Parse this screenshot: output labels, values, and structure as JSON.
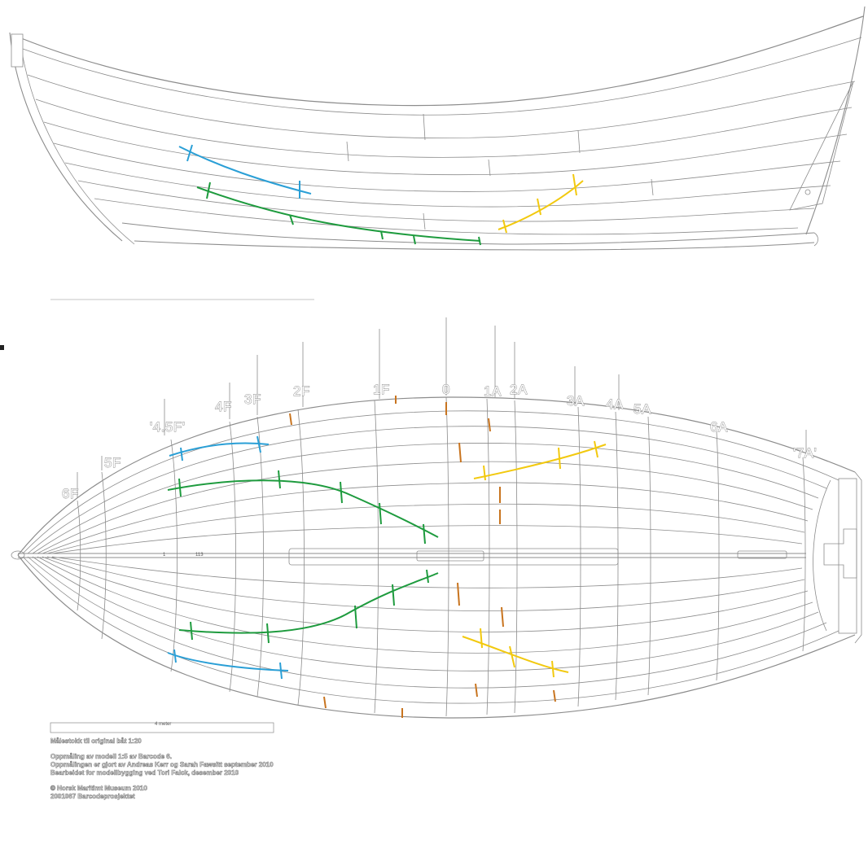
{
  "stations": [
    {
      "id": "6F",
      "label": "6F"
    },
    {
      "id": "5F",
      "label": "5F"
    },
    {
      "id": "4-5F",
      "label": "'4.5F'"
    },
    {
      "id": "4F",
      "label": "4F"
    },
    {
      "id": "3F",
      "label": "3F"
    },
    {
      "id": "2F",
      "label": "2F"
    },
    {
      "id": "1F",
      "label": "1F"
    },
    {
      "id": "0",
      "label": "0"
    },
    {
      "id": "1A",
      "label": "1A"
    },
    {
      "id": "2A",
      "label": "2A"
    },
    {
      "id": "3A",
      "label": "3A"
    },
    {
      "id": "4A",
      "label": "4A"
    },
    {
      "id": "5A",
      "label": "5A"
    },
    {
      "id": "6A",
      "label": "6A"
    },
    {
      "id": "7A",
      "label": "'7A'"
    }
  ],
  "keel_labels": {
    "a": "1",
    "b": "113"
  },
  "scale_bar_label": "4 meter",
  "notes": {
    "scale": "Målestokk til original båt 1:20",
    "line1": "Oppmåling av modell 1:5 av Barcode 6.",
    "line2": "Oppmålingen er gjort av Andreas Kerr og Sarah Fawsitt september 2010",
    "line3": "Bearbeidet for modellbygging ved Tori Falck, desember 2010",
    "copyright": "© Norsk Maritimt Museum 2010",
    "project": "2001067 Barcodeprosjektet"
  },
  "colors": {
    "blue": "#2a9fd6",
    "green": "#1e9b3e",
    "yellow": "#f2c90f",
    "orange": "#c8741f",
    "line": "#8c8c8c"
  }
}
